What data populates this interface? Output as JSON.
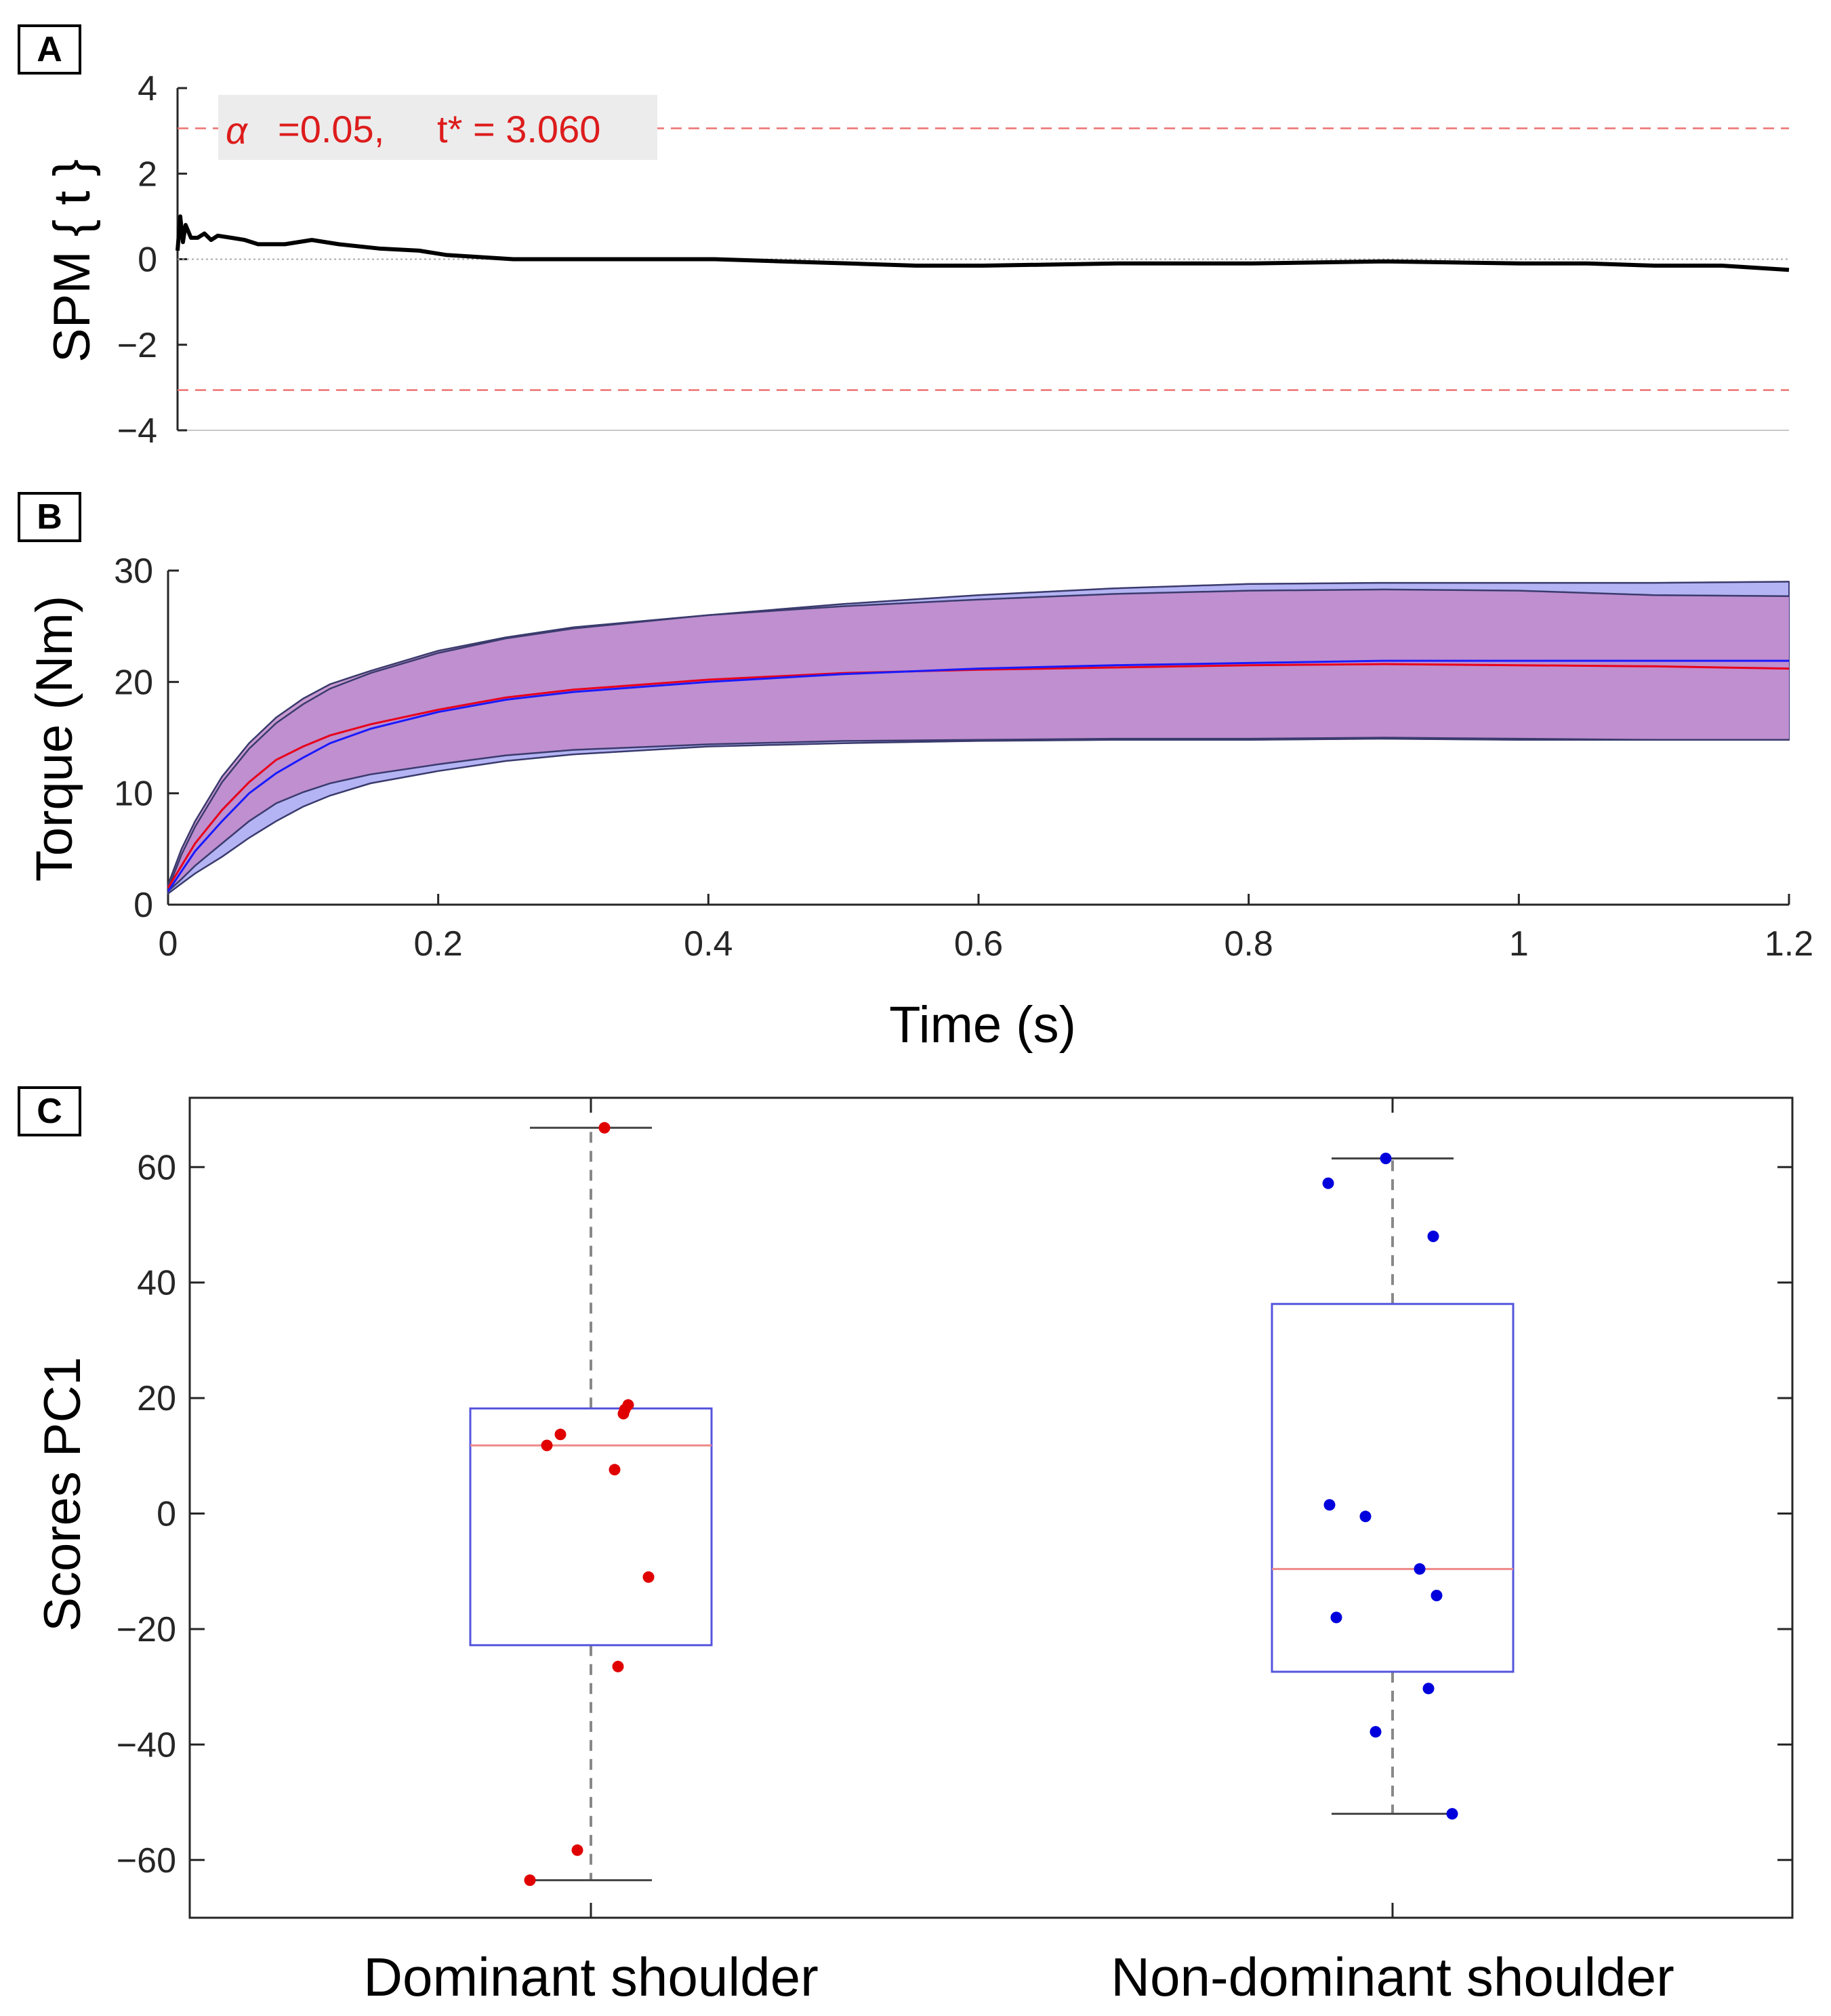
{
  "chart_data": [
    {
      "panel": "A",
      "type": "line",
      "ylabel": "SPM { t }",
      "ylim": [
        -4,
        4
      ],
      "yticks": [
        -4,
        -2,
        0,
        2,
        4
      ],
      "ytick_labels": [
        "−4",
        "−2",
        "0",
        "2",
        "4"
      ],
      "xlim": [
        0,
        1.2
      ],
      "threshold": {
        "alpha_symbol": "α",
        "text": "=0.05,     t* = 3.060",
        "value": 3.06
      },
      "series": [
        {
          "name": "SPM{t}",
          "x": [
            0,
            0.002,
            0.004,
            0.006,
            0.01,
            0.015,
            0.02,
            0.025,
            0.03,
            0.04,
            0.05,
            0.06,
            0.08,
            0.1,
            0.12,
            0.15,
            0.18,
            0.2,
            0.25,
            0.3,
            0.35,
            0.4,
            0.45,
            0.5,
            0.55,
            0.6,
            0.7,
            0.8,
            0.9,
            1.0,
            1.05,
            1.1,
            1.15,
            1.2
          ],
          "y": [
            0.2,
            1.0,
            0.4,
            0.8,
            0.5,
            0.5,
            0.6,
            0.45,
            0.55,
            0.5,
            0.45,
            0.35,
            0.35,
            0.45,
            0.35,
            0.25,
            0.2,
            0.1,
            0.0,
            0.0,
            0.0,
            0.0,
            -0.05,
            -0.1,
            -0.15,
            -0.15,
            -0.1,
            -0.1,
            -0.05,
            -0.1,
            -0.1,
            -0.15,
            -0.15,
            -0.25
          ]
        }
      ]
    },
    {
      "panel": "B",
      "type": "area",
      "xlabel": "Time (s)",
      "ylabel": "Torque (Nm)",
      "xlim": [
        0,
        1.2
      ],
      "ylim": [
        0,
        30
      ],
      "xticks": [
        0,
        0.2,
        0.4,
        0.6,
        0.8,
        1,
        1.2
      ],
      "xtick_labels": [
        "0",
        "0.2",
        "0.4",
        "0.6",
        "0.8",
        "1",
        "1.2"
      ],
      "yticks": [
        0,
        10,
        20,
        30
      ],
      "ytick_labels": [
        "0",
        "10",
        "20",
        "30"
      ],
      "x": [
        0,
        0.01,
        0.02,
        0.04,
        0.06,
        0.08,
        0.1,
        0.12,
        0.15,
        0.2,
        0.25,
        0.3,
        0.4,
        0.5,
        0.6,
        0.7,
        0.8,
        0.9,
        1.0,
        1.1,
        1.2
      ],
      "series": [
        {
          "name": "Dominant shoulder",
          "color": "#e8001c",
          "mean": [
            1.5,
            3.5,
            5.5,
            8.5,
            11.0,
            13.0,
            14.2,
            15.2,
            16.2,
            17.5,
            18.6,
            19.3,
            20.2,
            20.8,
            21.1,
            21.3,
            21.5,
            21.6,
            21.5,
            21.4,
            21.2
          ],
          "upper": [
            1.8,
            5.0,
            7.5,
            11.5,
            14.5,
            16.8,
            18.5,
            19.8,
            21.0,
            22.8,
            24.0,
            24.9,
            26.0,
            26.8,
            27.4,
            27.9,
            28.2,
            28.3,
            28.2,
            27.8,
            27.7
          ],
          "lower": [
            1.2,
            2.3,
            3.5,
            5.5,
            7.5,
            9.1,
            10.1,
            10.9,
            11.7,
            12.6,
            13.4,
            13.9,
            14.4,
            14.7,
            14.8,
            14.9,
            14.9,
            15.0,
            14.9,
            14.8,
            14.8
          ]
        },
        {
          "name": "Non-dominant shoulder",
          "color": "#1a1aff",
          "mean": [
            1.2,
            3.0,
            4.8,
            7.5,
            10.0,
            11.8,
            13.2,
            14.5,
            15.8,
            17.3,
            18.4,
            19.1,
            20.0,
            20.7,
            21.2,
            21.5,
            21.7,
            21.9,
            21.9,
            21.9,
            21.9
          ],
          "upper": [
            1.4,
            4.5,
            7.0,
            11.0,
            14.0,
            16.3,
            18.0,
            19.4,
            20.8,
            22.6,
            23.9,
            24.8,
            26.0,
            27.0,
            27.8,
            28.4,
            28.8,
            28.9,
            28.9,
            28.9,
            29.0
          ],
          "lower": [
            1.0,
            1.9,
            2.8,
            4.3,
            6.0,
            7.5,
            8.8,
            9.8,
            10.9,
            12.0,
            12.9,
            13.5,
            14.2,
            14.5,
            14.7,
            14.8,
            14.8,
            14.9,
            14.8,
            14.8,
            14.8
          ]
        }
      ]
    },
    {
      "panel": "C",
      "type": "box",
      "ylabel": "Scores PC1",
      "ylim": [
        -70,
        72
      ],
      "yticks": [
        -60,
        -40,
        -20,
        0,
        20,
        40,
        60
      ],
      "ytick_labels": [
        "−60",
        "−40",
        "−20",
        "0",
        "20",
        "40",
        "60"
      ],
      "categories": [
        "Dominant shoulder",
        "Non-dominant shoulder"
      ],
      "boxes": [
        {
          "name": "Dominant shoulder",
          "point_color": "#e00000",
          "box_color": "#5555dd",
          "median_color": "#ee8888",
          "min": -63.5,
          "q1": -22.8,
          "median": 11.8,
          "q3": 18.2,
          "max": 66.8,
          "points": [
            {
              "offset": 0.02,
              "value": 66.8
            },
            {
              "offset": 0.055,
              "value": 18.8
            },
            {
              "offset": 0.05,
              "value": 18.0
            },
            {
              "offset": 0.048,
              "value": 17.3
            },
            {
              "offset": -0.045,
              "value": 13.7
            },
            {
              "offset": -0.065,
              "value": 11.8
            },
            {
              "offset": 0.035,
              "value": 7.6
            },
            {
              "offset": 0.085,
              "value": -11.0
            },
            {
              "offset": 0.04,
              "value": -26.5
            },
            {
              "offset": -0.02,
              "value": -58.3
            },
            {
              "offset": -0.09,
              "value": -63.5
            }
          ]
        },
        {
          "name": "Non-dominant shoulder",
          "point_color": "#0000dd",
          "box_color": "#5555dd",
          "median_color": "#ee8888",
          "min": -52.0,
          "q1": -27.4,
          "median": -9.6,
          "q3": 36.3,
          "max": 61.5,
          "points": [
            {
              "offset": -0.01,
              "value": 61.5
            },
            {
              "offset": -0.095,
              "value": 57.2
            },
            {
              "offset": 0.06,
              "value": 48.0
            },
            {
              "offset": -0.093,
              "value": 1.5
            },
            {
              "offset": -0.04,
              "value": -0.5
            },
            {
              "offset": 0.04,
              "value": -9.6
            },
            {
              "offset": 0.065,
              "value": -14.2
            },
            {
              "offset": -0.083,
              "value": -18.0
            },
            {
              "offset": 0.053,
              "value": -30.3
            },
            {
              "offset": -0.025,
              "value": -37.8
            },
            {
              "offset": 0.088,
              "value": -52.0
            }
          ]
        }
      ]
    }
  ]
}
